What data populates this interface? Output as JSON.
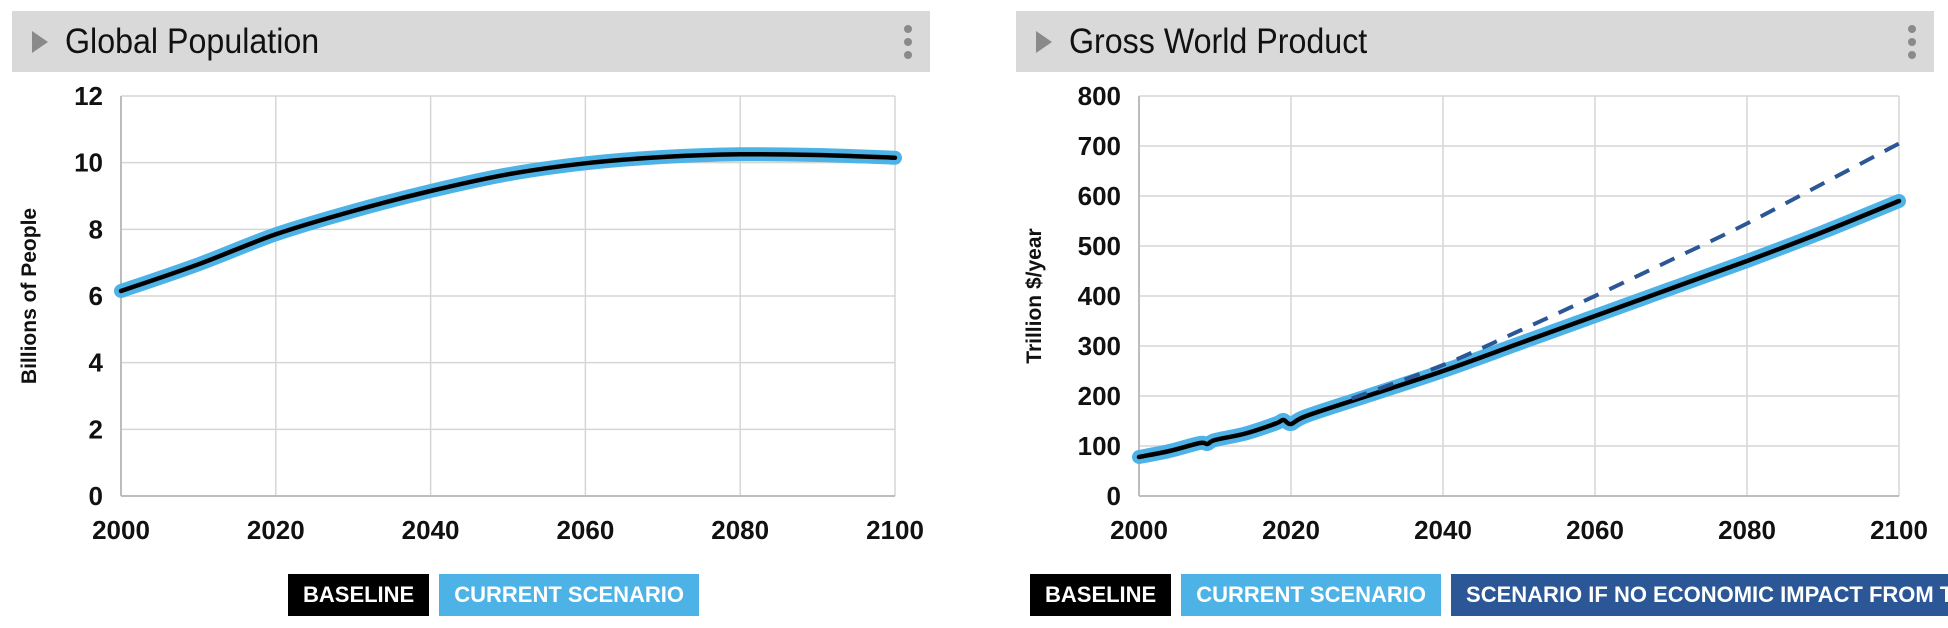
{
  "panels": [
    {
      "title": "Global Population",
      "chart_data": {
        "type": "line",
        "title": "Global Population",
        "xlabel": "",
        "ylabel": "Billions of People",
        "xlim": [
          2000,
          2100
        ],
        "ylim": [
          0,
          12
        ],
        "xticks": [
          2000,
          2020,
          2040,
          2060,
          2080,
          2100
        ],
        "yticks": [
          0,
          2,
          4,
          6,
          8,
          10,
          12
        ],
        "grid": true,
        "legend_position": "bottom",
        "series": [
          {
            "name": "BASELINE",
            "color": "#000000",
            "style": "solid",
            "x": [
              2000,
              2010,
              2020,
              2030,
              2040,
              2050,
              2060,
              2070,
              2080,
              2090,
              2100
            ],
            "y": [
              6.15,
              6.95,
              7.85,
              8.55,
              9.15,
              9.65,
              9.98,
              10.17,
              10.25,
              10.23,
              10.15
            ]
          },
          {
            "name": "CURRENT SCENARIO",
            "color": "#4db3e6",
            "style": "solid",
            "x": [
              2000,
              2010,
              2020,
              2030,
              2040,
              2050,
              2060,
              2070,
              2080,
              2090,
              2100
            ],
            "y": [
              6.15,
              6.95,
              7.85,
              8.55,
              9.15,
              9.65,
              9.98,
              10.17,
              10.25,
              10.23,
              10.15
            ]
          }
        ]
      }
    },
    {
      "title": "Gross World Product",
      "chart_data": {
        "type": "line",
        "title": "Gross World Product",
        "xlabel": "",
        "ylabel": "Trillion $/year",
        "xlim": [
          2000,
          2100
        ],
        "ylim": [
          0,
          800
        ],
        "xticks": [
          2000,
          2020,
          2040,
          2060,
          2080,
          2100
        ],
        "yticks": [
          0,
          100,
          200,
          300,
          400,
          500,
          600,
          700,
          800
        ],
        "grid": true,
        "legend_position": "bottom",
        "series": [
          {
            "name": "BASELINE",
            "color": "#000000",
            "style": "solid",
            "x": [
              2000,
              2004,
              2008,
              2009,
              2010,
              2014,
              2018,
              2019,
              2020,
              2022,
              2030,
              2040,
              2050,
              2060,
              2070,
              2080,
              2090,
              2100
            ],
            "y": [
              78,
              90,
              106,
              104,
              112,
              125,
              145,
              152,
              144,
              160,
              200,
              250,
              305,
              360,
              415,
              470,
              528,
              590
            ]
          },
          {
            "name": "CURRENT SCENARIO",
            "color": "#4db3e6",
            "style": "solid",
            "x": [
              2000,
              2004,
              2008,
              2009,
              2010,
              2014,
              2018,
              2019,
              2020,
              2022,
              2030,
              2040,
              2050,
              2060,
              2070,
              2080,
              2090,
              2100
            ],
            "y": [
              78,
              90,
              106,
              104,
              112,
              125,
              145,
              152,
              144,
              160,
              200,
              250,
              305,
              360,
              415,
              470,
              528,
              590
            ]
          },
          {
            "name": "SCENARIO IF NO ECONOMIC IMPACT FROM TEMP",
            "color": "#2b5797",
            "style": "dashed",
            "x": [
              2028,
              2040,
              2050,
              2060,
              2070,
              2080,
              2090,
              2100
            ],
            "y": [
              195,
              262,
              330,
              400,
              472,
              545,
              625,
              705
            ]
          }
        ]
      }
    }
  ]
}
